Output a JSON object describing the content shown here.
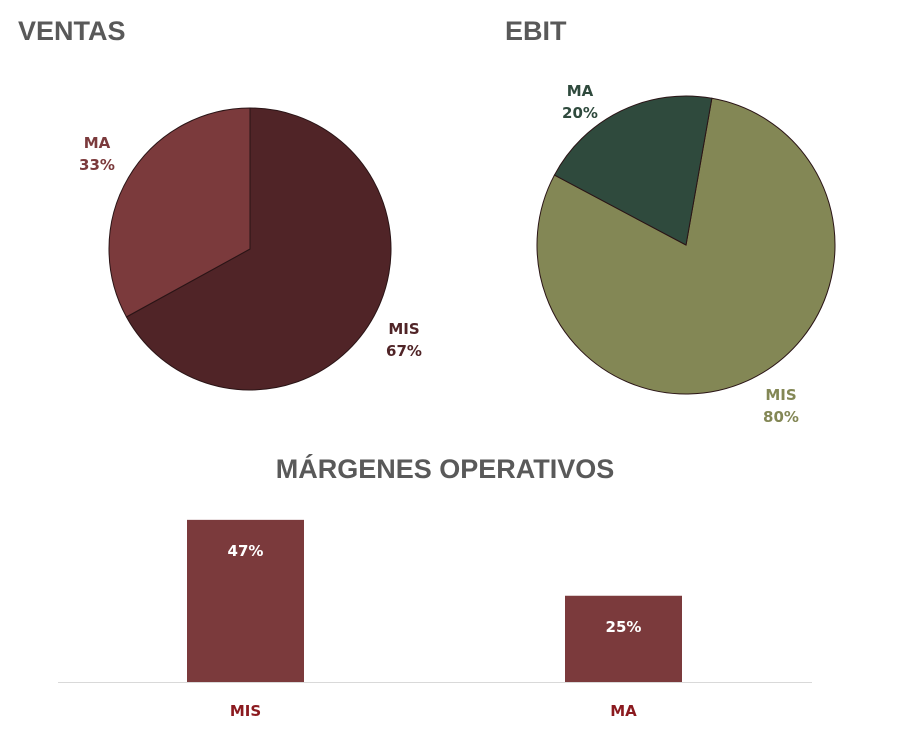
{
  "chart_data": [
    {
      "type": "pie",
      "title": "VENTAS",
      "slices": [
        {
          "label": "MIS",
          "value": 67,
          "value_label": "67%",
          "color": "#502427"
        },
        {
          "label": "MA",
          "value": 33,
          "value_label": "33%",
          "color": "#7b3a3c"
        }
      ]
    },
    {
      "type": "pie",
      "title": "EBIT",
      "slices": [
        {
          "label": "MIS",
          "value": 80,
          "value_label": "80%",
          "color": "#838755"
        },
        {
          "label": "MA",
          "value": 20,
          "value_label": "20%",
          "color": "#2f4a3d"
        }
      ]
    },
    {
      "type": "bar",
      "title": "MÁRGENES OPERATIVOS",
      "categories": [
        "MIS",
        "MA"
      ],
      "values": [
        47,
        25
      ],
      "value_labels": [
        "47%",
        "25%"
      ],
      "bar_color": "#7b3a3c",
      "category_label_color": "#8b1a1f",
      "value_label_color": "#ffffff",
      "grid": false
    }
  ]
}
